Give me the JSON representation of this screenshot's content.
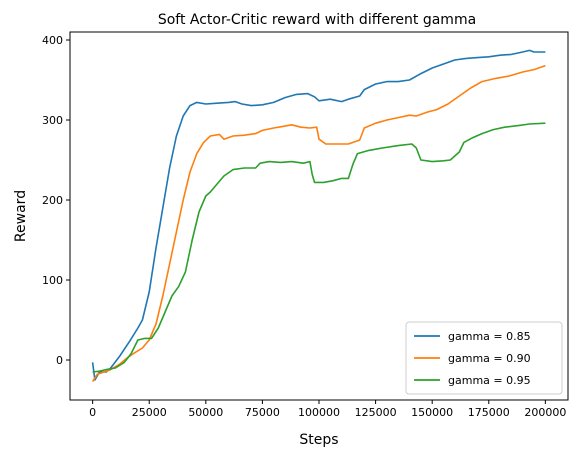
{
  "chart_data": {
    "type": "line",
    "title": "Soft Actor-Critic reward with different gamma",
    "xlabel": "Steps",
    "ylabel": "Reward",
    "xlim": [
      -10000,
      210000
    ],
    "ylim": [
      -50,
      410
    ],
    "xticks": [
      0,
      25000,
      50000,
      75000,
      100000,
      125000,
      150000,
      175000,
      200000
    ],
    "yticks": [
      0,
      100,
      200,
      300,
      400
    ],
    "grid": false,
    "legend_position": "bottom-right",
    "series": [
      {
        "name": "gamma = 0.85",
        "color": "#1f77b4",
        "points": [
          [
            0,
            -3
          ],
          [
            1000,
            -25
          ],
          [
            3000,
            -15
          ],
          [
            6000,
            -15
          ],
          [
            8000,
            -10
          ],
          [
            12000,
            5
          ],
          [
            16000,
            22
          ],
          [
            20000,
            40
          ],
          [
            22000,
            50
          ],
          [
            25000,
            85
          ],
          [
            28000,
            140
          ],
          [
            31000,
            190
          ],
          [
            34000,
            240
          ],
          [
            37000,
            280
          ],
          [
            40000,
            305
          ],
          [
            43000,
            318
          ],
          [
            46000,
            322
          ],
          [
            50000,
            320
          ],
          [
            55000,
            321
          ],
          [
            60000,
            322
          ],
          [
            63000,
            323
          ],
          [
            66000,
            320
          ],
          [
            70000,
            318
          ],
          [
            75000,
            319
          ],
          [
            80000,
            322
          ],
          [
            85000,
            328
          ],
          [
            90000,
            332
          ],
          [
            95000,
            333
          ],
          [
            98000,
            329
          ],
          [
            100000,
            324
          ],
          [
            105000,
            326
          ],
          [
            110000,
            323
          ],
          [
            113000,
            326
          ],
          [
            118000,
            330
          ],
          [
            120000,
            338
          ],
          [
            125000,
            345
          ],
          [
            130000,
            348
          ],
          [
            135000,
            348
          ],
          [
            140000,
            350
          ],
          [
            145000,
            358
          ],
          [
            150000,
            365
          ],
          [
            155000,
            370
          ],
          [
            160000,
            375
          ],
          [
            165000,
            377
          ],
          [
            170000,
            378
          ],
          [
            175000,
            379
          ],
          [
            180000,
            381
          ],
          [
            185000,
            382
          ],
          [
            190000,
            385
          ],
          [
            193000,
            387
          ],
          [
            195000,
            385
          ],
          [
            200000,
            385
          ]
        ]
      },
      {
        "name": "gamma = 0.90",
        "color": "#ff7f0e",
        "points": [
          [
            0,
            -27
          ],
          [
            2000,
            -18
          ],
          [
            5000,
            -15
          ],
          [
            8000,
            -12
          ],
          [
            12000,
            -5
          ],
          [
            15000,
            2
          ],
          [
            18000,
            8
          ],
          [
            22000,
            15
          ],
          [
            25000,
            25
          ],
          [
            28000,
            45
          ],
          [
            31000,
            80
          ],
          [
            34000,
            120
          ],
          [
            37000,
            160
          ],
          [
            40000,
            200
          ],
          [
            43000,
            235
          ],
          [
            46000,
            258
          ],
          [
            49000,
            272
          ],
          [
            52000,
            280
          ],
          [
            56000,
            282
          ],
          [
            58000,
            276
          ],
          [
            62000,
            280
          ],
          [
            67000,
            281
          ],
          [
            72000,
            283
          ],
          [
            75000,
            287
          ],
          [
            80000,
            290
          ],
          [
            84000,
            292
          ],
          [
            88000,
            294
          ],
          [
            92000,
            291
          ],
          [
            96000,
            290
          ],
          [
            99000,
            291
          ],
          [
            100000,
            276
          ],
          [
            103000,
            270
          ],
          [
            108000,
            270
          ],
          [
            113000,
            270
          ],
          [
            118000,
            275
          ],
          [
            120000,
            290
          ],
          [
            125000,
            296
          ],
          [
            130000,
            300
          ],
          [
            135000,
            303
          ],
          [
            140000,
            306
          ],
          [
            143000,
            305
          ],
          [
            148000,
            310
          ],
          [
            152000,
            313
          ],
          [
            157000,
            320
          ],
          [
            162000,
            330
          ],
          [
            167000,
            340
          ],
          [
            172000,
            348
          ],
          [
            178000,
            352
          ],
          [
            184000,
            355
          ],
          [
            190000,
            360
          ],
          [
            195000,
            363
          ],
          [
            200000,
            368
          ]
        ]
      },
      {
        "name": "gamma = 0.95",
        "color": "#2ca02c",
        "points": [
          [
            0,
            -15
          ],
          [
            3000,
            -14
          ],
          [
            6000,
            -12
          ],
          [
            10000,
            -10
          ],
          [
            14000,
            -3
          ],
          [
            17000,
            8
          ],
          [
            20000,
            25
          ],
          [
            23000,
            27
          ],
          [
            26000,
            27
          ],
          [
            29000,
            40
          ],
          [
            32000,
            60
          ],
          [
            35000,
            80
          ],
          [
            38000,
            92
          ],
          [
            41000,
            110
          ],
          [
            44000,
            150
          ],
          [
            47000,
            185
          ],
          [
            50000,
            205
          ],
          [
            52000,
            210
          ],
          [
            55000,
            220
          ],
          [
            58000,
            230
          ],
          [
            62000,
            238
          ],
          [
            67000,
            240
          ],
          [
            72000,
            240
          ],
          [
            74000,
            246
          ],
          [
            78000,
            248
          ],
          [
            83000,
            247
          ],
          [
            88000,
            248
          ],
          [
            93000,
            246
          ],
          [
            96000,
            248
          ],
          [
            97000,
            232
          ],
          [
            98000,
            222
          ],
          [
            102000,
            222
          ],
          [
            106000,
            224
          ],
          [
            110000,
            227
          ],
          [
            113000,
            227
          ],
          [
            115000,
            245
          ],
          [
            117000,
            258
          ],
          [
            122000,
            262
          ],
          [
            128000,
            265
          ],
          [
            135000,
            268
          ],
          [
            141000,
            270
          ],
          [
            143000,
            265
          ],
          [
            145000,
            250
          ],
          [
            150000,
            248
          ],
          [
            155000,
            249
          ],
          [
            158000,
            250
          ],
          [
            162000,
            260
          ],
          [
            164000,
            272
          ],
          [
            168000,
            278
          ],
          [
            172000,
            283
          ],
          [
            177000,
            288
          ],
          [
            182000,
            291
          ],
          [
            188000,
            293
          ],
          [
            193000,
            295
          ],
          [
            200000,
            296
          ]
        ]
      }
    ]
  }
}
